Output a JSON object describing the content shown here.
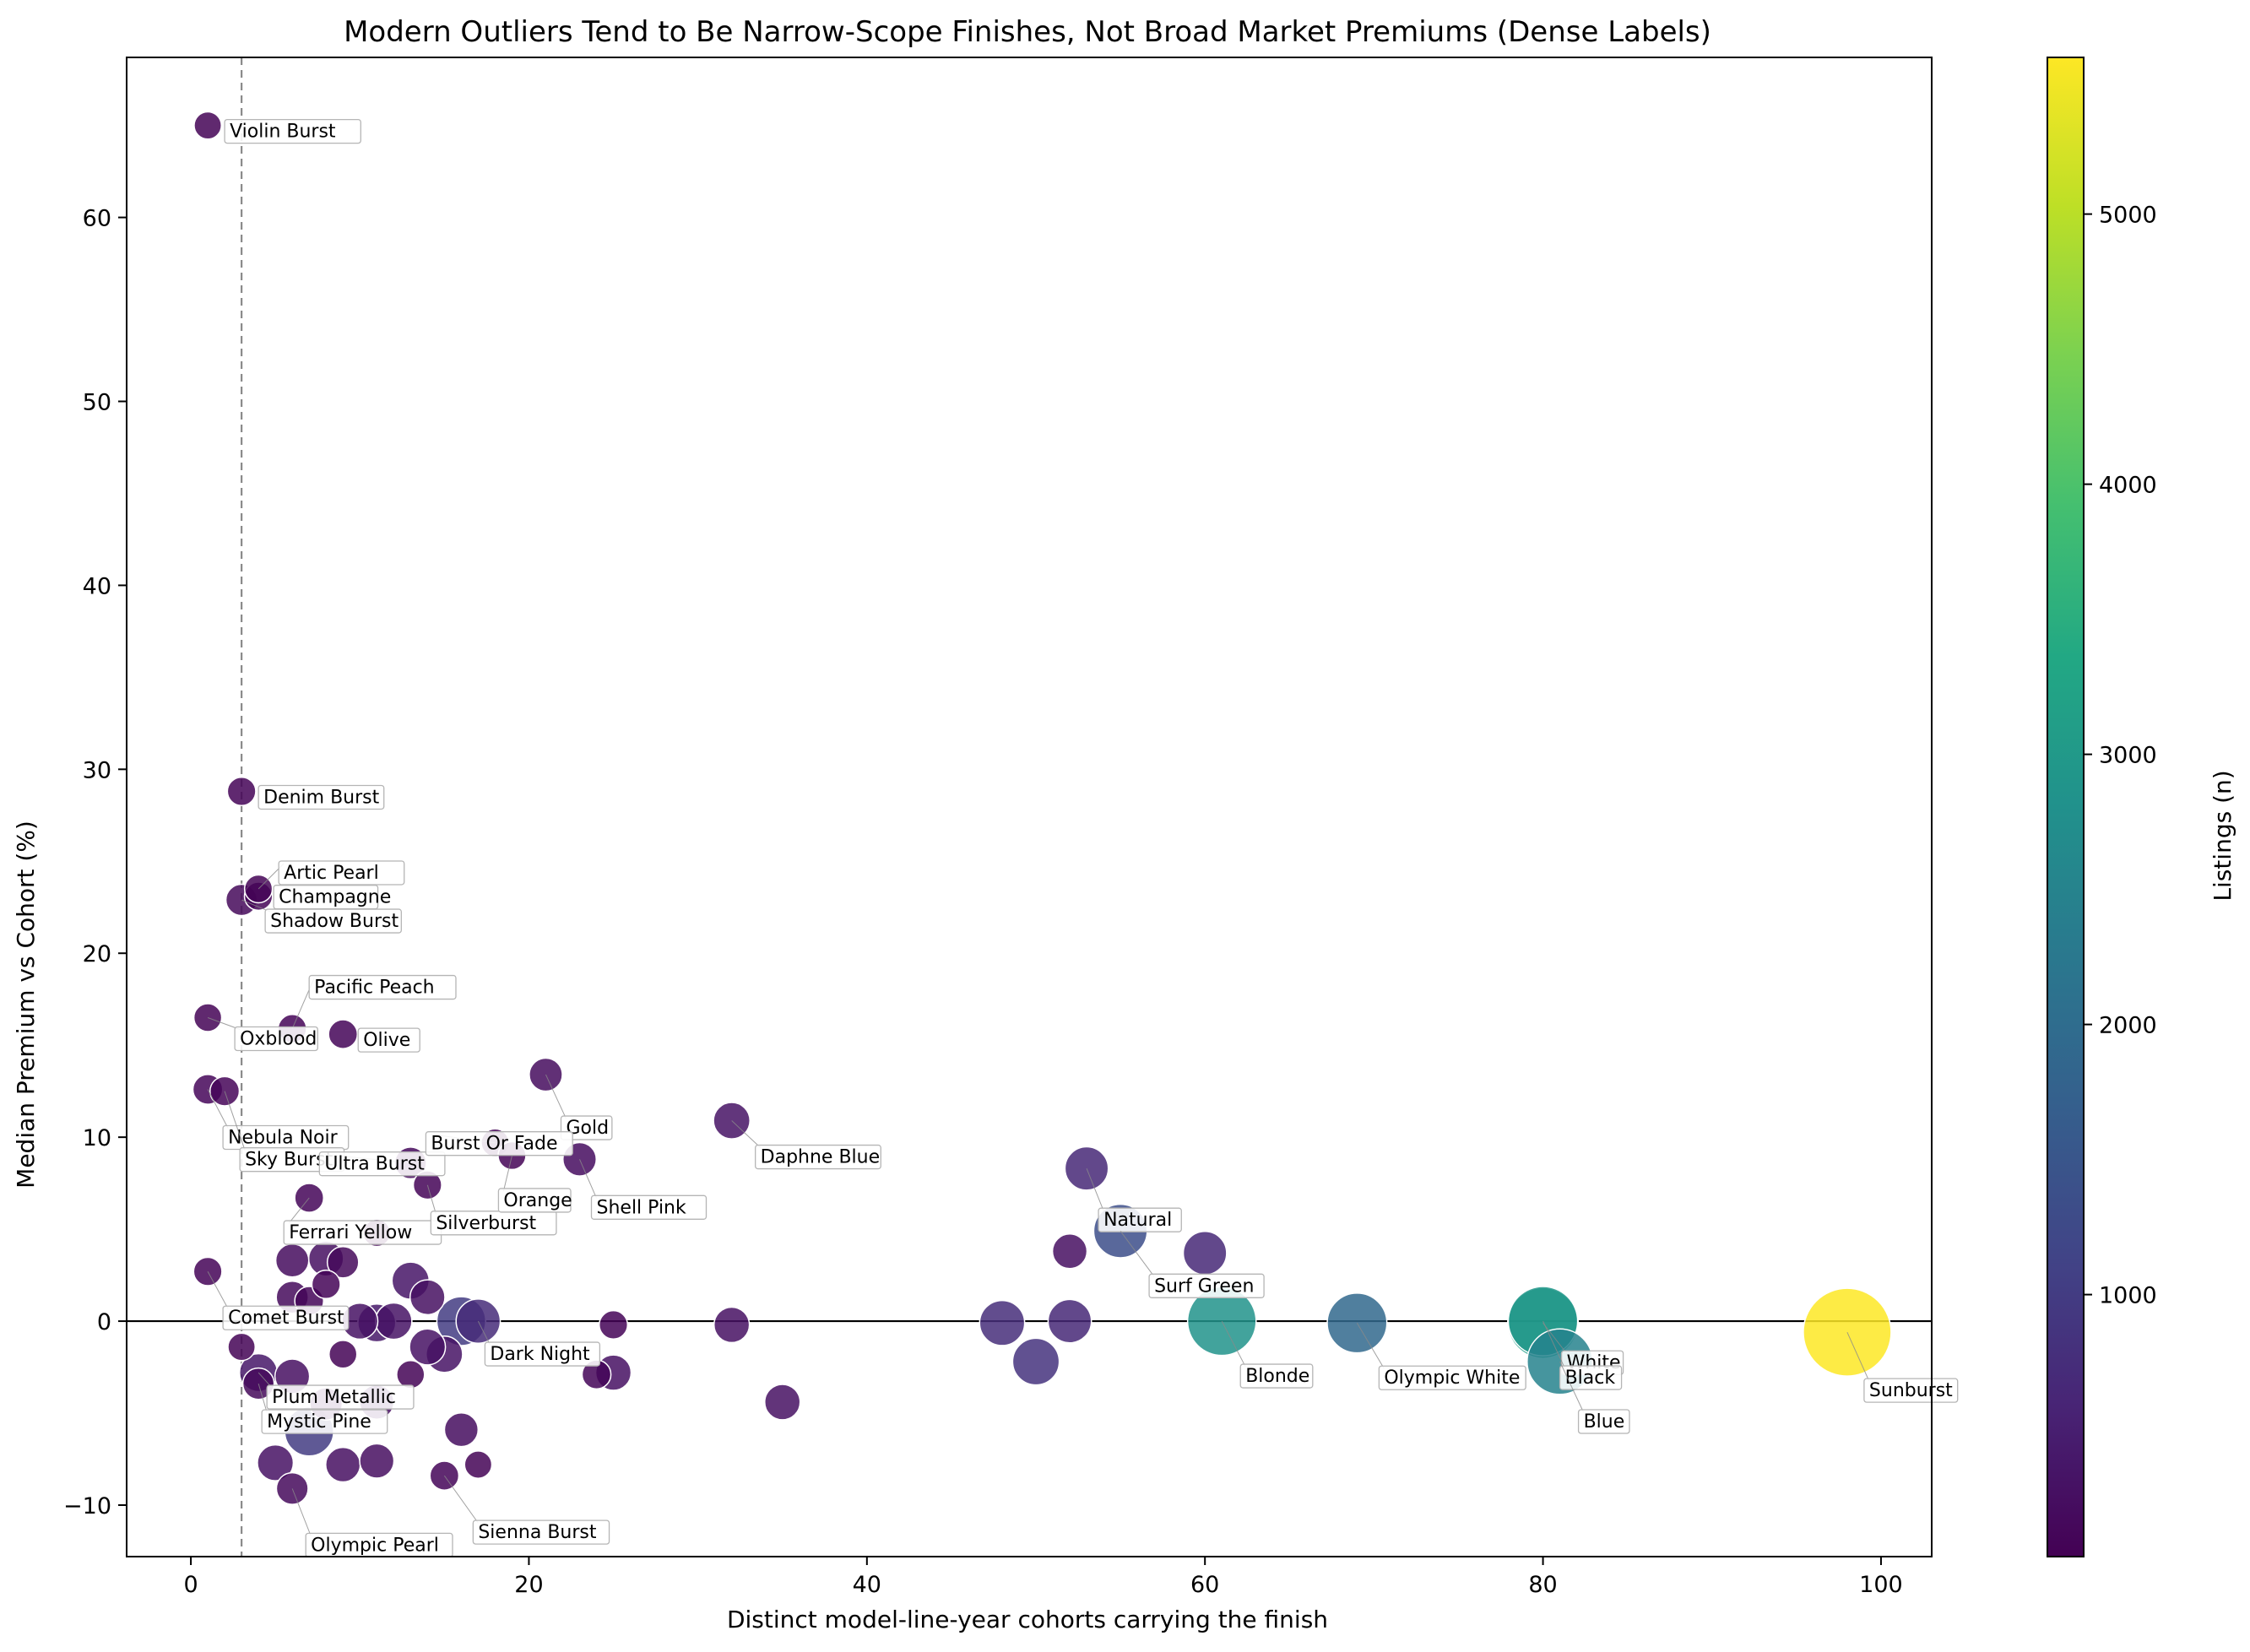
{
  "chart_data": {
    "type": "scatter",
    "title": "Modern Outliers Tend to Be Narrow-Scope Finishes, Not Broad Market Premiums (Dense Labels)",
    "xlabel": "Distinct model-line-year cohorts carrying the finish",
    "ylabel": "Median Premium vs Cohort (%)",
    "xlim": [
      -3.8,
      103
    ],
    "ylim": [
      -12.8,
      68.7
    ],
    "xticks": [
      0,
      20,
      40,
      60,
      80,
      100
    ],
    "yticks": [
      -10,
      0,
      10,
      20,
      30,
      40,
      50,
      60
    ],
    "reference_lines": {
      "vertical_x": 3,
      "horizontal_y": 0
    },
    "colorbar": {
      "label": "Listings (n)",
      "colormap": "viridis",
      "range": [
        30,
        5580
      ],
      "ticks": [
        1000,
        2000,
        3000,
        4000,
        5000
      ]
    },
    "points": [
      {
        "label": "Violin Burst",
        "x": 1,
        "y": 65.0,
        "n": 60
      },
      {
        "label": "Denim Burst",
        "x": 3,
        "y": 28.8,
        "n": 80
      },
      {
        "label": "Artic Pearl",
        "x": 4,
        "y": 23.5,
        "n": 70
      },
      {
        "label": "Champagne",
        "x": 4,
        "y": 23.1,
        "n": 75
      },
      {
        "label": "Shadow Burst",
        "x": 3,
        "y": 22.9,
        "n": 150
      },
      {
        "label": "Pacific Peach",
        "x": 6,
        "y": 15.9,
        "n": 80
      },
      {
        "label": "Oxblood",
        "x": 1,
        "y": 16.5,
        "n": 70
      },
      {
        "label": "Olive",
        "x": 9,
        "y": 15.6,
        "n": 90
      },
      {
        "label": "Nebula Noir",
        "x": 1,
        "y": 12.6,
        "n": 110
      },
      {
        "label": "Sky Burst",
        "x": 2,
        "y": 12.5,
        "n": 100
      },
      {
        "label": "Gold",
        "x": 21,
        "y": 13.4,
        "n": 200
      },
      {
        "label": "Daphne Blue",
        "x": 32,
        "y": 10.9,
        "n": 320
      },
      {
        "label": "Ultra Burst",
        "x": 13,
        "y": 8.6,
        "n": 160
      },
      {
        "label": "Ferrari Yellow",
        "x": 7,
        "y": 6.7,
        "n": 90
      },
      {
        "label": "Burst Or Fade",
        "x": 18,
        "y": 9.7,
        "n": 70
      },
      {
        "label": "Silverburst",
        "x": 14,
        "y": 7.4,
        "n": 80
      },
      {
        "label": "Orange",
        "x": 19,
        "y": 9.0,
        "n": 70
      },
      {
        "label": "Shell Pink",
        "x": 23,
        "y": 8.8,
        "n": 210
      },
      {
        "label": "Natural",
        "x": 53,
        "y": 8.3,
        "n": 650
      },
      {
        "label": "Surf Green",
        "x": 55,
        "y": 4.9,
        "n": 1350
      },
      {
        "label": "Blonde",
        "x": 61,
        "y": 0.0,
        "n": 2850
      },
      {
        "label": "Olympic White",
        "x": 69,
        "y": -0.1,
        "n": 1900
      },
      {
        "label": "White",
        "x": 80,
        "y": -0.1,
        "n": 3100
      },
      {
        "label": "Black",
        "x": 80,
        "y": 0.0,
        "n": 2950
      },
      {
        "label": "Blue",
        "x": 81,
        "y": -2.2,
        "n": 2500
      },
      {
        "label": "Sunburst",
        "x": 98,
        "y": -0.6,
        "n": 5580
      },
      {
        "label": "Comet Burst",
        "x": 1,
        "y": 2.7,
        "n": 80
      },
      {
        "label": "Dark Night",
        "x": 17,
        "y": 0.0,
        "n": 700
      },
      {
        "label": "Plum Metallic",
        "x": 4,
        "y": -2.8,
        "n": 380
      },
      {
        "label": "Mystic Pine",
        "x": 4,
        "y": -3.4,
        "n": 150
      },
      {
        "label": "Olympic Pearl",
        "x": 6,
        "y": -9.1,
        "n": 160
      },
      {
        "label": "Sienna Burst",
        "x": 15,
        "y": -8.4,
        "n": 90
      },
      {
        "label": "",
        "x": 11,
        "y": 4.8,
        "n": 60
      },
      {
        "label": "",
        "x": 6,
        "y": 3.3,
        "n": 200
      },
      {
        "label": "",
        "x": 8,
        "y": 3.4,
        "n": 260
      },
      {
        "label": "",
        "x": 9,
        "y": 3.2,
        "n": 150
      },
      {
        "label": "",
        "x": 8,
        "y": 2.0,
        "n": 80
      },
      {
        "label": "",
        "x": 6,
        "y": 1.3,
        "n": 170
      },
      {
        "label": "",
        "x": 7,
        "y": 1.1,
        "n": 90
      },
      {
        "label": "",
        "x": 13,
        "y": 2.2,
        "n": 350
      },
      {
        "label": "",
        "x": 14,
        "y": 1.3,
        "n": 260
      },
      {
        "label": "",
        "x": 10,
        "y": 0.0,
        "n": 300
      },
      {
        "label": "",
        "x": 11,
        "y": -0.1,
        "n": 380
      },
      {
        "label": "",
        "x": 12,
        "y": 0.0,
        "n": 320
      },
      {
        "label": "",
        "x": 16,
        "y": 0.0,
        "n": 1000
      },
      {
        "label": "",
        "x": 14,
        "y": -1.4,
        "n": 300
      },
      {
        "label": "",
        "x": 15,
        "y": -1.8,
        "n": 320
      },
      {
        "label": "",
        "x": 25,
        "y": -0.2,
        "n": 80
      },
      {
        "label": "",
        "x": 32,
        "y": -0.2,
        "n": 280
      },
      {
        "label": "",
        "x": 3,
        "y": -1.4,
        "n": 60
      },
      {
        "label": "",
        "x": 9,
        "y": -1.8,
        "n": 70
      },
      {
        "label": "",
        "x": 13,
        "y": -2.9,
        "n": 70
      },
      {
        "label": "",
        "x": 24,
        "y": -2.9,
        "n": 90
      },
      {
        "label": "",
        "x": 25,
        "y": -2.8,
        "n": 280
      },
      {
        "label": "",
        "x": 6,
        "y": -3.0,
        "n": 250
      },
      {
        "label": "",
        "x": 8,
        "y": -4.5,
        "n": 180
      },
      {
        "label": "",
        "x": 11,
        "y": -4.4,
        "n": 240
      },
      {
        "label": "",
        "x": 7,
        "y": -6.0,
        "n": 1000
      },
      {
        "label": "",
        "x": 16,
        "y": -5.9,
        "n": 220
      },
      {
        "label": "",
        "x": 35,
        "y": -4.4,
        "n": 280
      },
      {
        "label": "",
        "x": 5,
        "y": -7.7,
        "n": 300
      },
      {
        "label": "",
        "x": 9,
        "y": -7.8,
        "n": 250
      },
      {
        "label": "",
        "x": 11,
        "y": -7.6,
        "n": 240
      },
      {
        "label": "",
        "x": 17,
        "y": -7.8,
        "n": 60
      },
      {
        "label": "",
        "x": 52,
        "y": 3.8,
        "n": 250
      },
      {
        "label": "",
        "x": 60,
        "y": 3.7,
        "n": 650
      },
      {
        "label": "",
        "x": 48,
        "y": -0.1,
        "n": 750
      },
      {
        "label": "",
        "x": 52,
        "y": 0.0,
        "n": 650
      },
      {
        "label": "",
        "x": 50,
        "y": -2.2,
        "n": 850
      }
    ]
  }
}
